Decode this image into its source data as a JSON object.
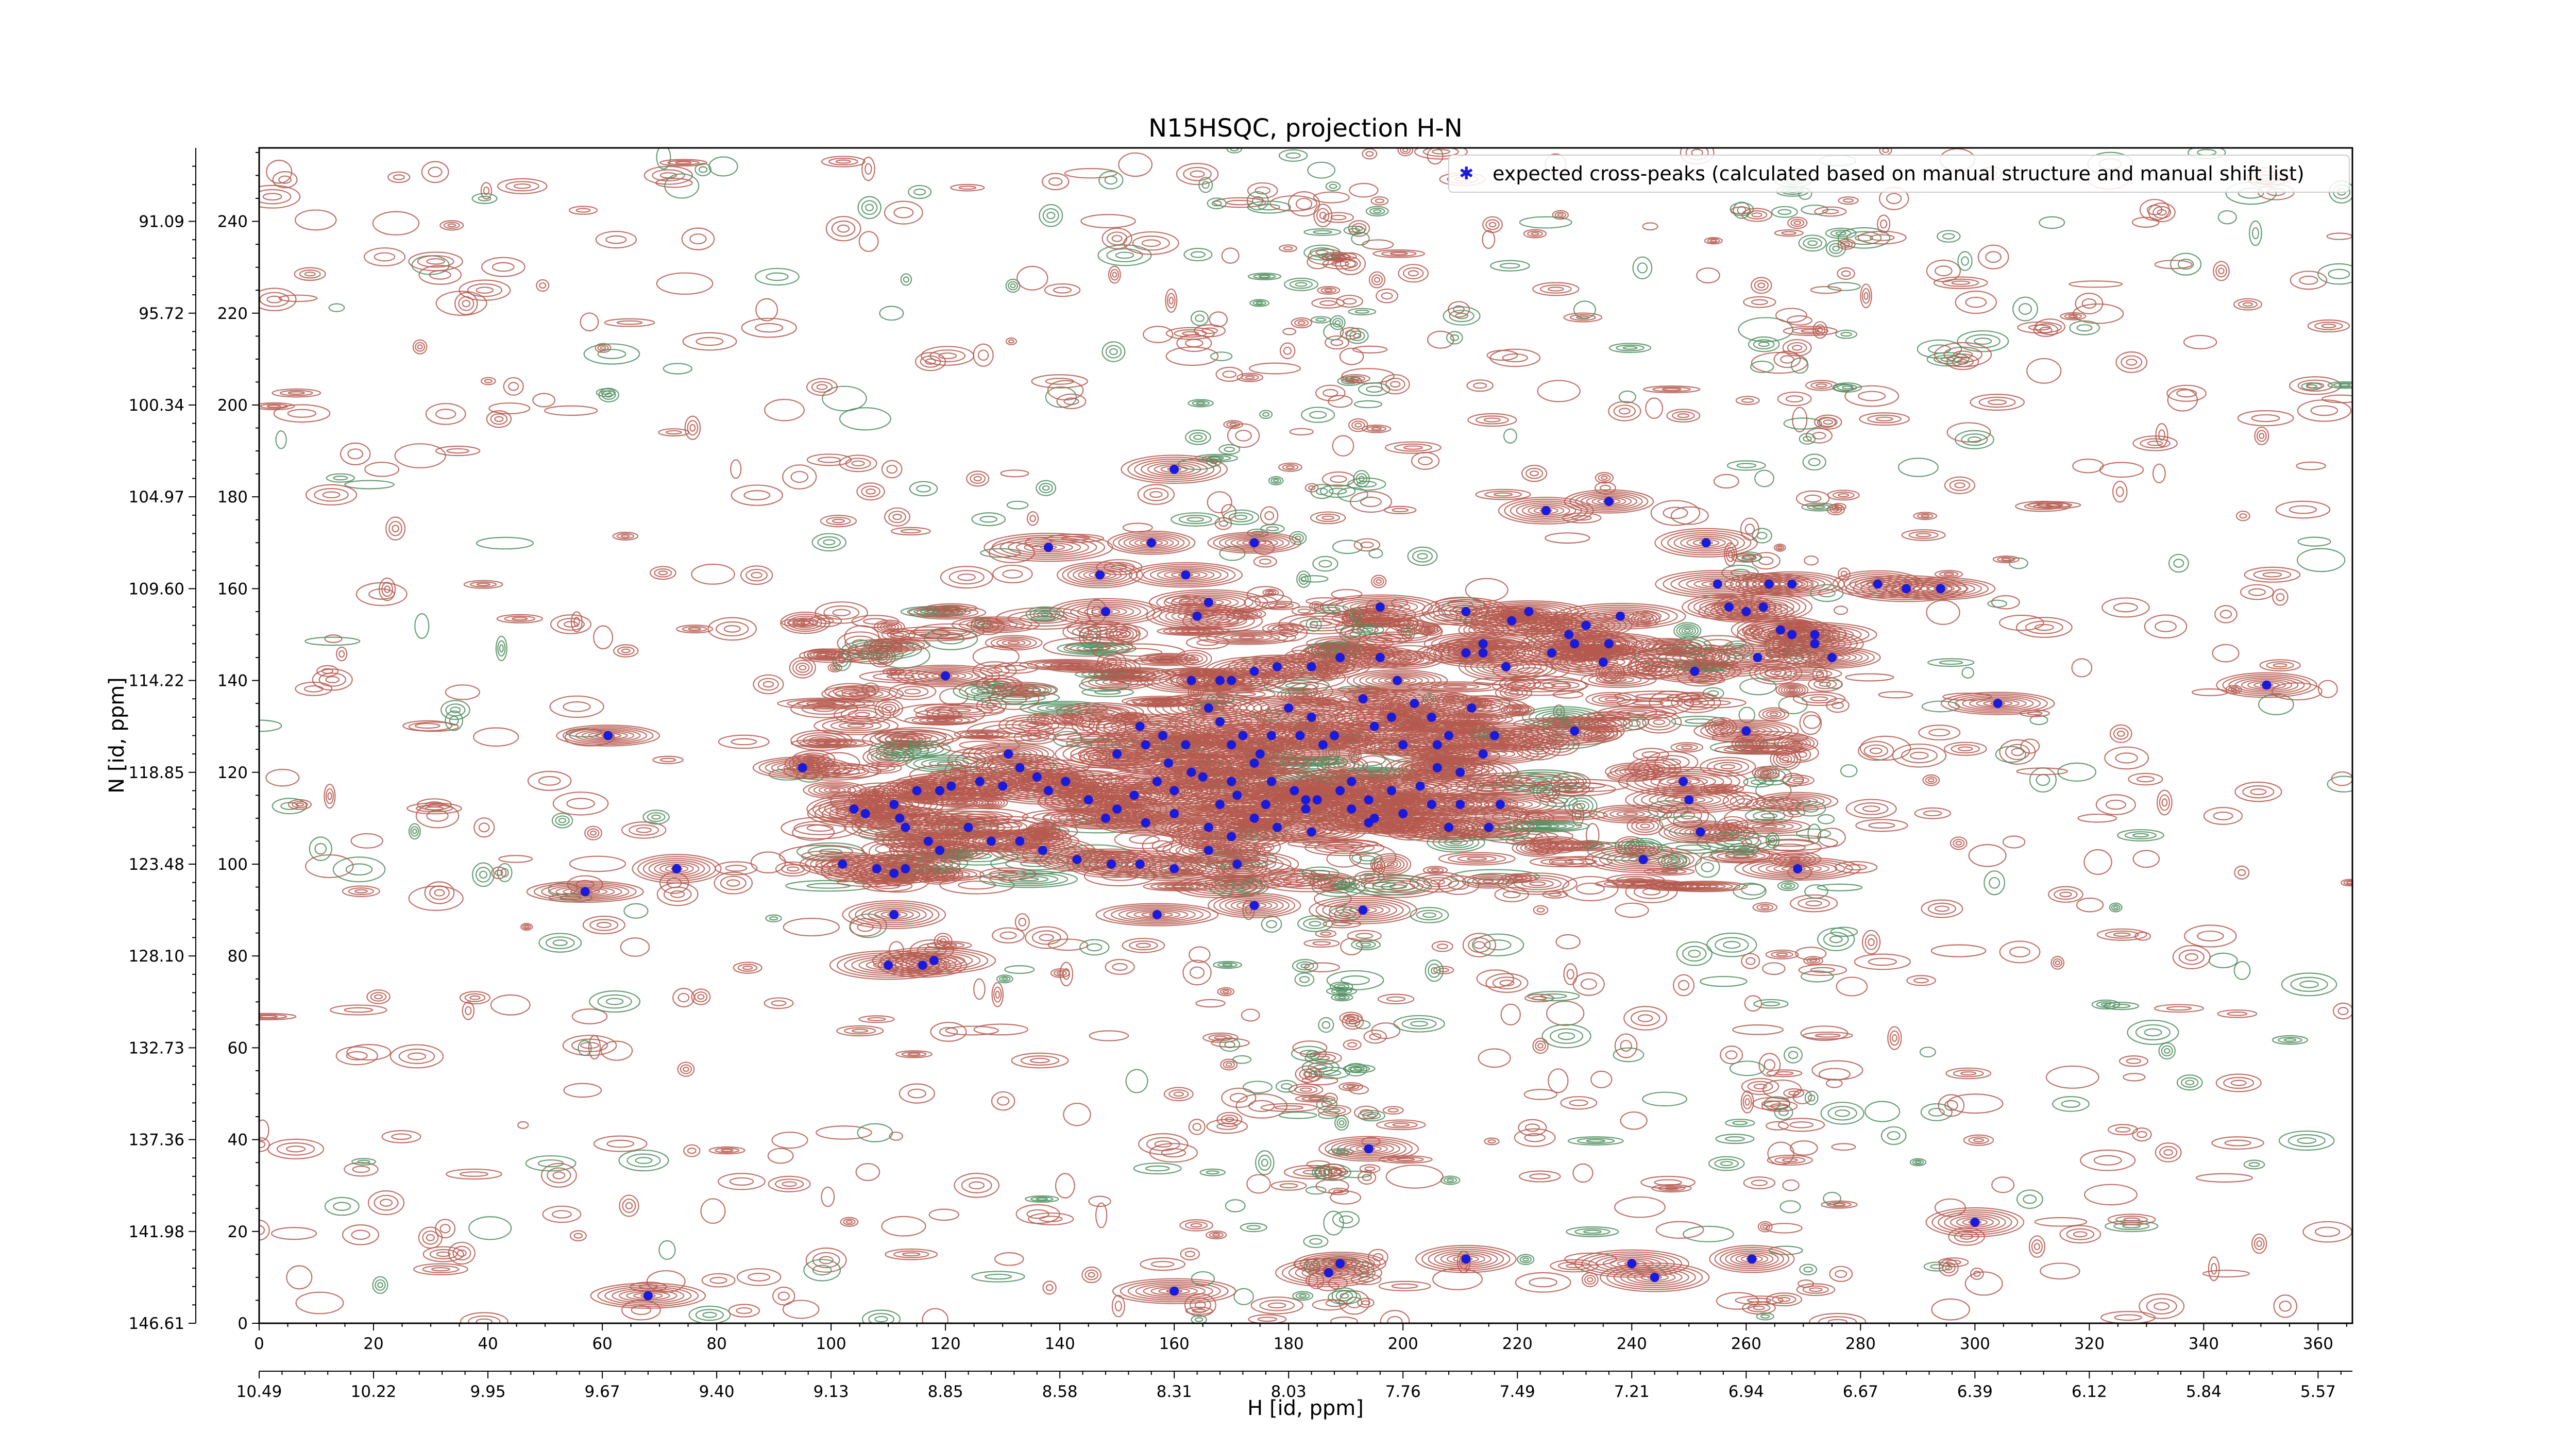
{
  "chart_data": {
    "type": "scatter",
    "title": "N15HSQC, projection H-N",
    "xlabel": "H [id, ppm]",
    "ylabel": "N [id, ppm]",
    "x_index_ticks": [
      "0",
      "20",
      "40",
      "60",
      "80",
      "100",
      "120",
      "140",
      "160",
      "180",
      "200",
      "220",
      "240",
      "260",
      "280",
      "300",
      "320",
      "340",
      "360"
    ],
    "x_ppm_ticks": [
      "10.49",
      "10.22",
      "9.95",
      "9.67",
      "9.40",
      "9.13",
      "8.85",
      "8.58",
      "8.31",
      "8.03",
      "7.76",
      "7.49",
      "7.21",
      "6.94",
      "6.67",
      "6.39",
      "6.12",
      "5.84",
      "5.57"
    ],
    "y_index_ticks": [
      "0",
      "20",
      "40",
      "60",
      "80",
      "100",
      "120",
      "140",
      "160",
      "180",
      "200",
      "220",
      "240"
    ],
    "y_ppm_ticks": [
      "146.61",
      "141.98",
      "137.36",
      "132.73",
      "128.10",
      "123.48",
      "118.85",
      "114.22",
      "109.60",
      "104.97",
      "100.34",
      "95.72",
      "91.09"
    ],
    "xlim": [
      0,
      366
    ],
    "ylim": [
      0,
      256
    ],
    "legend": {
      "position": "top-right",
      "label": "expected cross-peaks (calculated based on manual structure and manual shift list)"
    },
    "colors": {
      "positive_contour": "#b5584e",
      "negative_contour": "#4e8d5e",
      "peak_marker": "#1a1adb"
    },
    "series": [
      {
        "name": "expected cross-peaks (calculated based on manual structure and manual shift list)",
        "points": [
          [
            160,
            186
          ],
          [
            138,
            169
          ],
          [
            156,
            170
          ],
          [
            174,
            170
          ],
          [
            147,
            163
          ],
          [
            162,
            163
          ],
          [
            148,
            155
          ],
          [
            164,
            154
          ],
          [
            166,
            157
          ],
          [
            196,
            156
          ],
          [
            211,
            155
          ],
          [
            214,
            148
          ],
          [
            225,
            177
          ],
          [
            236,
            179
          ],
          [
            253,
            170
          ],
          [
            255,
            161
          ],
          [
            264,
            161
          ],
          [
            268,
            161
          ],
          [
            283,
            161
          ],
          [
            288,
            160
          ],
          [
            294,
            160
          ],
          [
            257,
            156
          ],
          [
            260,
            155
          ],
          [
            263,
            156
          ],
          [
            266,
            151
          ],
          [
            268,
            150
          ],
          [
            272,
            150
          ],
          [
            262,
            145
          ],
          [
            275,
            145
          ],
          [
            272,
            148
          ],
          [
            251,
            142
          ],
          [
            226,
            146
          ],
          [
            229,
            150
          ],
          [
            232,
            152
          ],
          [
            235,
            144
          ],
          [
            238,
            154
          ],
          [
            236,
            148
          ],
          [
            230,
            148
          ],
          [
            219,
            153
          ],
          [
            222,
            155
          ],
          [
            214,
            146
          ],
          [
            211,
            146
          ],
          [
            218,
            143
          ],
          [
            120,
            141
          ],
          [
            163,
            140
          ],
          [
            170,
            140
          ],
          [
            174,
            142
          ],
          [
            178,
            143
          ],
          [
            184,
            143
          ],
          [
            189,
            145
          ],
          [
            196,
            145
          ],
          [
            199,
            140
          ],
          [
            193,
            136
          ],
          [
            184,
            132
          ],
          [
            180,
            134
          ],
          [
            177,
            128
          ],
          [
            172,
            128
          ],
          [
            168,
            140
          ],
          [
            166,
            134
          ],
          [
            162,
            126
          ],
          [
            158,
            128
          ],
          [
            155,
            126
          ],
          [
            154,
            130
          ],
          [
            150,
            124
          ],
          [
            159,
            122
          ],
          [
            163,
            120
          ],
          [
            168,
            131
          ],
          [
            170,
            126
          ],
          [
            175,
            124
          ],
          [
            182,
            128
          ],
          [
            186,
            126
          ],
          [
            188,
            128
          ],
          [
            195,
            130
          ],
          [
            198,
            132
          ],
          [
            202,
            135
          ],
          [
            205,
            132
          ],
          [
            208,
            128
          ],
          [
            212,
            134
          ],
          [
            216,
            128
          ],
          [
            214,
            124
          ],
          [
            210,
            120
          ],
          [
            206,
            126
          ],
          [
            200,
            126
          ],
          [
            206,
            121
          ],
          [
            203,
            117
          ],
          [
            198,
            116
          ],
          [
            194,
            114
          ],
          [
            191,
            118
          ],
          [
            189,
            116
          ],
          [
            185,
            114
          ],
          [
            181,
            116
          ],
          [
            177,
            118
          ],
          [
            174,
            122
          ],
          [
            171,
            115
          ],
          [
            168,
            113
          ],
          [
            165,
            119
          ],
          [
            160,
            116
          ],
          [
            157,
            118
          ],
          [
            153,
            115
          ],
          [
            150,
            112
          ],
          [
            148,
            110
          ],
          [
            145,
            114
          ],
          [
            141,
            118
          ],
          [
            138,
            116
          ],
          [
            136,
            119
          ],
          [
            133,
            121
          ],
          [
            131,
            124
          ],
          [
            130,
            117
          ],
          [
            126,
            118
          ],
          [
            121,
            117
          ],
          [
            119,
            116
          ],
          [
            115,
            116
          ],
          [
            113,
            108
          ],
          [
            112,
            110
          ],
          [
            111,
            113
          ],
          [
            106,
            111
          ],
          [
            104,
            112
          ],
          [
            95,
            121
          ],
          [
            61,
            128
          ],
          [
            155,
            109
          ],
          [
            160,
            111
          ],
          [
            166,
            108
          ],
          [
            174,
            110
          ],
          [
            178,
            108
          ],
          [
            184,
            107
          ],
          [
            194,
            109
          ],
          [
            200,
            111
          ],
          [
            205,
            113
          ],
          [
            210,
            113
          ],
          [
            217,
            113
          ],
          [
            215,
            108
          ],
          [
            208,
            108
          ],
          [
            195,
            110
          ],
          [
            191,
            112
          ],
          [
            183,
            112
          ],
          [
            176,
            113
          ],
          [
            170,
            106
          ],
          [
            166,
            103
          ],
          [
            171,
            100
          ],
          [
            160,
            99
          ],
          [
            154,
            100
          ],
          [
            149,
            100
          ],
          [
            143,
            101
          ],
          [
            137,
            103
          ],
          [
            133,
            105
          ],
          [
            128,
            105
          ],
          [
            124,
            108
          ],
          [
            119,
            103
          ],
          [
            117,
            105
          ],
          [
            113,
            99
          ],
          [
            111,
            98
          ],
          [
            108,
            99
          ],
          [
            102,
            100
          ],
          [
            73,
            99
          ],
          [
            57,
            94
          ],
          [
            111,
            89
          ],
          [
            157,
            89
          ],
          [
            174,
            91
          ],
          [
            193,
            90
          ],
          [
            242,
            101
          ],
          [
            269,
            99
          ],
          [
            252,
            107
          ],
          [
            250,
            114
          ],
          [
            249,
            118
          ],
          [
            260,
            129
          ],
          [
            304,
            135
          ],
          [
            351,
            139
          ],
          [
            230,
            129
          ],
          [
            183,
            114
          ],
          [
            170,
            118
          ],
          [
            110,
            78
          ],
          [
            116,
            78
          ],
          [
            118,
            79
          ],
          [
            194,
            38
          ],
          [
            160,
            7
          ],
          [
            187,
            11
          ],
          [
            189,
            13
          ],
          [
            211,
            14
          ],
          [
            240,
            13
          ],
          [
            244,
            10
          ],
          [
            261,
            14
          ],
          [
            300,
            22
          ],
          [
            68,
            6
          ]
        ]
      }
    ]
  }
}
